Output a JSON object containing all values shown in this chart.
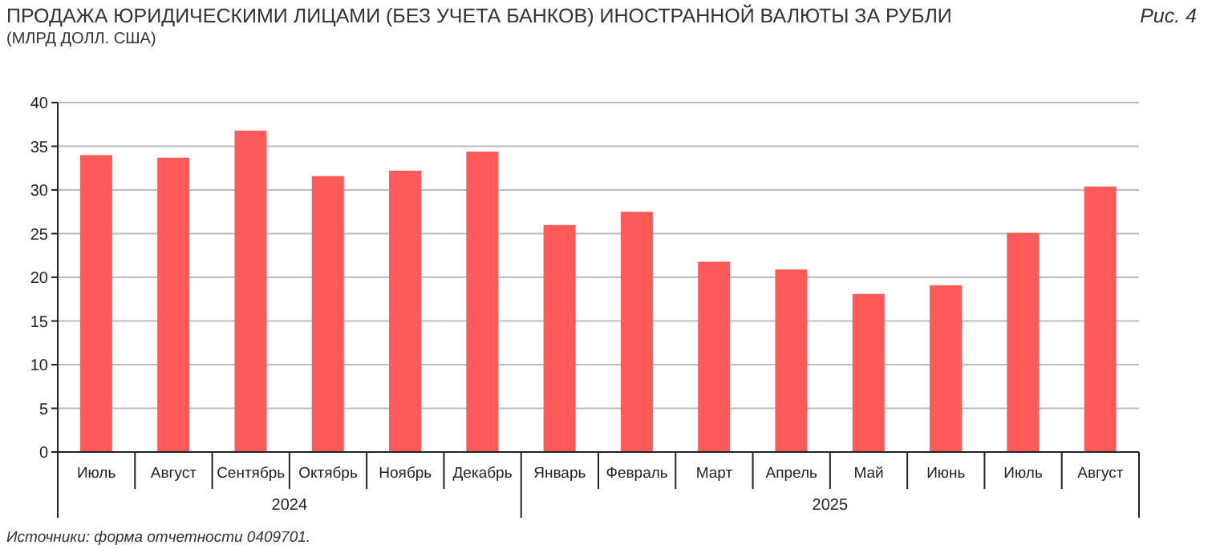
{
  "chart_data": {
    "type": "bar",
    "title": "ПРОДАЖА ЮРИДИЧЕСКИМИ ЛИЦАМИ (БЕЗ УЧЕТА БАНКОВ) ИНОСТРАННОЙ ВАЛЮТЫ ЗА РУБЛИ",
    "subtitle": "(МЛРД ДОЛЛ. США)",
    "annotations": [
      "Рис. 4",
      "2024",
      "2025",
      "Источники: форма отчетности 0409701."
    ],
    "categories": [
      "Июль",
      "Август",
      "Сентябрь",
      "Октябрь",
      "Ноябрь",
      "Декабрь",
      "Январь",
      "Февраль",
      "Март",
      "Апрель",
      "Май",
      "Июнь",
      "Июль",
      "Август"
    ],
    "values": [
      33.9,
      33.6,
      36.7,
      31.5,
      32.1,
      34.3,
      25.9,
      27.4,
      21.7,
      20.8,
      18.0,
      19.0,
      25.0,
      30.3
    ],
    "color": "#ff5a5a",
    "ylim": [
      0,
      40
    ],
    "yticks": [
      0,
      5,
      10,
      15,
      20,
      25,
      30,
      35,
      40
    ],
    "grid": "y"
  }
}
